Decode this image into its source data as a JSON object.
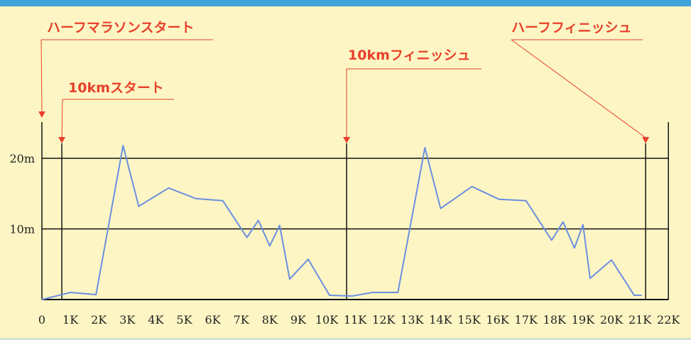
{
  "chart_data": {
    "type": "line",
    "title": "",
    "xlabel": "",
    "ylabel": "",
    "xlim": [
      0,
      22
    ],
    "ylim": [
      0,
      25
    ],
    "x_tick_labels": [
      "0",
      "1K",
      "2K",
      "3K",
      "4K",
      "5K",
      "6K",
      "7K",
      "8K",
      "9K",
      "10K",
      "11K",
      "12K",
      "13K",
      "14K",
      "15K",
      "16K",
      "17K",
      "18K",
      "19K",
      "20K",
      "21K",
      "22K"
    ],
    "y_ticks": [
      {
        "value": 10,
        "label": "10m"
      },
      {
        "value": 20,
        "label": "20m"
      }
    ],
    "series": [
      {
        "color": "#6b8fe0",
        "x": [
          0,
          1.0,
          1.9,
          2.85,
          3.4,
          4.45,
          5.4,
          6.35,
          7.2,
          7.6,
          8.0,
          8.35,
          8.7,
          9.35,
          10.1,
          10.9,
          11.6,
          12.5,
          13.45,
          14.0,
          15.1,
          16.05,
          17.0,
          17.9,
          18.3,
          18.7,
          19.0,
          19.25,
          20.0,
          20.8,
          21.05
        ],
        "y": [
          0,
          1.0,
          0.7,
          21.8,
          13.2,
          15.8,
          14.3,
          14.0,
          8.8,
          11.2,
          7.6,
          10.5,
          2.9,
          5.7,
          0.6,
          0.5,
          1.0,
          1.0,
          21.5,
          12.9,
          16.0,
          14.2,
          14.0,
          8.4,
          11.0,
          7.3,
          10.6,
          3.0,
          5.6,
          0.6,
          0.6
        ]
      }
    ],
    "events": [
      {
        "label": "ハーフマラソンスタート",
        "x": 0
      },
      {
        "label": "10kmスタート",
        "x": 0.7
      },
      {
        "label": "10kmフィニッシュ",
        "x": 10.7
      },
      {
        "label": "ハーフフィニッシュ",
        "x": 21.2
      }
    ],
    "colors": {
      "background": "#fdf6c4",
      "line": "#6b8fe0",
      "event": "#e8402b",
      "axis": "#111111",
      "top_bar": "#3ea3d8"
    }
  }
}
